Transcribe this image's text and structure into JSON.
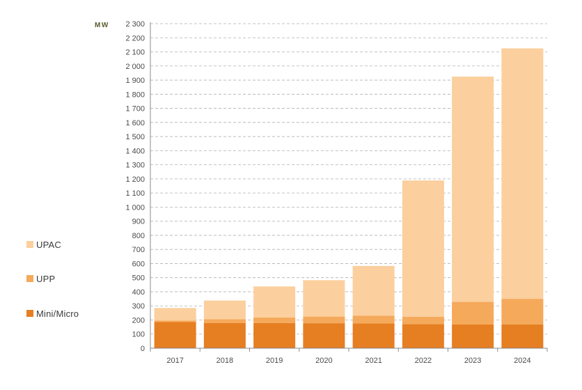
{
  "chart_data": {
    "type": "bar",
    "stacked": true,
    "ylabel": "MW",
    "ylim": [
      0,
      2300
    ],
    "ytick_step": 100,
    "ytick_labels": [
      "0",
      "100",
      "200",
      "300",
      "400",
      "500",
      "600",
      "700",
      "800",
      "900",
      "1 000",
      "1 100",
      "1 200",
      "1 300",
      "1 400",
      "1 500",
      "1 600",
      "1 700",
      "1 800",
      "1 900",
      "2 000",
      "2 100",
      "2 200",
      "2 300"
    ],
    "categories": [
      "2017",
      "2018",
      "2019",
      "2020",
      "2021",
      "2022",
      "2023",
      "2024"
    ],
    "grid": true,
    "series": [
      {
        "name": "Mini/Micro",
        "color": "#e67e22",
        "values": [
          185,
          178,
          178,
          177,
          175,
          170,
          168,
          168
        ]
      },
      {
        "name": "UPP",
        "color": "#f5a95a",
        "values": [
          10,
          27,
          40,
          47,
          56,
          52,
          160,
          182
        ]
      },
      {
        "name": "UPAC",
        "color": "#fbcf9e",
        "values": [
          90,
          133,
          220,
          258,
          352,
          967,
          1597,
          1775
        ]
      }
    ],
    "legend_order": [
      2,
      1,
      0
    ],
    "colors": {
      "axis": "#888888",
      "grid": "#b0b0b0",
      "tick_text": "#4a4a4a"
    }
  }
}
